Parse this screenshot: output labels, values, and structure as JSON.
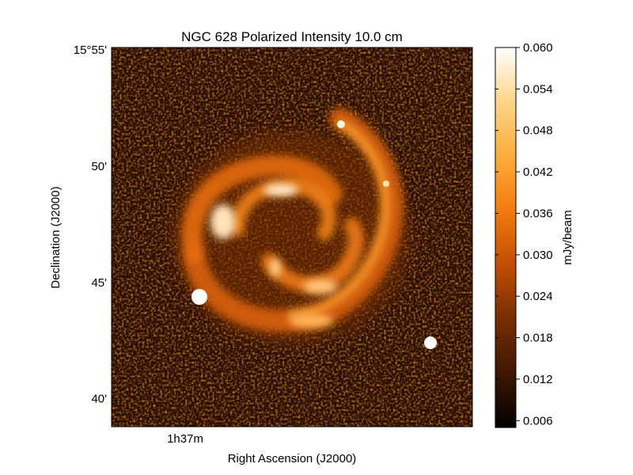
{
  "chart_data": {
    "type": "heatmap",
    "title": "NGC 628 Polarized Intensity 10.0 cm",
    "xlabel": "Right Ascension (J2000)",
    "ylabel": "Declination (J2000)",
    "x_ticks": [
      {
        "label": "1h37m",
        "value": "1h37m"
      }
    ],
    "y_ticks": [
      {
        "label": "15°55'",
        "value_arcmin_offset": 55
      },
      {
        "label": "50'",
        "value_arcmin_offset": 50
      },
      {
        "label": "45'",
        "value_arcmin_offset": 45
      },
      {
        "label": "40'",
        "value_arcmin_offset": 40
      }
    ],
    "ylim_arcmin": [
      38.8,
      55.1
    ],
    "colorbar": {
      "label": "mJy/beam",
      "range": [
        0.005,
        0.06
      ],
      "ticks": [
        "0.060",
        "0.054",
        "0.048",
        "0.042",
        "0.036",
        "0.030",
        "0.024",
        "0.018",
        "0.012",
        "0.006"
      ],
      "tick_values": [
        0.06,
        0.054,
        0.048,
        0.042,
        0.036,
        0.03,
        0.024,
        0.018,
        0.012,
        0.006
      ],
      "colormap": [
        "#000000",
        "#3d1604",
        "#7a2e02",
        "#c24e04",
        "#f27a0e",
        "#ffab3a",
        "#ffd68a",
        "#ffffff"
      ]
    },
    "features": [
      {
        "name": "inner ring arm",
        "type": "spiral arm"
      },
      {
        "name": "outer ring arm",
        "type": "spiral arm"
      },
      {
        "name": "compact source east",
        "type": "point source"
      },
      {
        "name": "compact source south-west",
        "type": "point source"
      },
      {
        "name": "compact source north",
        "type": "point source"
      }
    ],
    "grid": false
  }
}
